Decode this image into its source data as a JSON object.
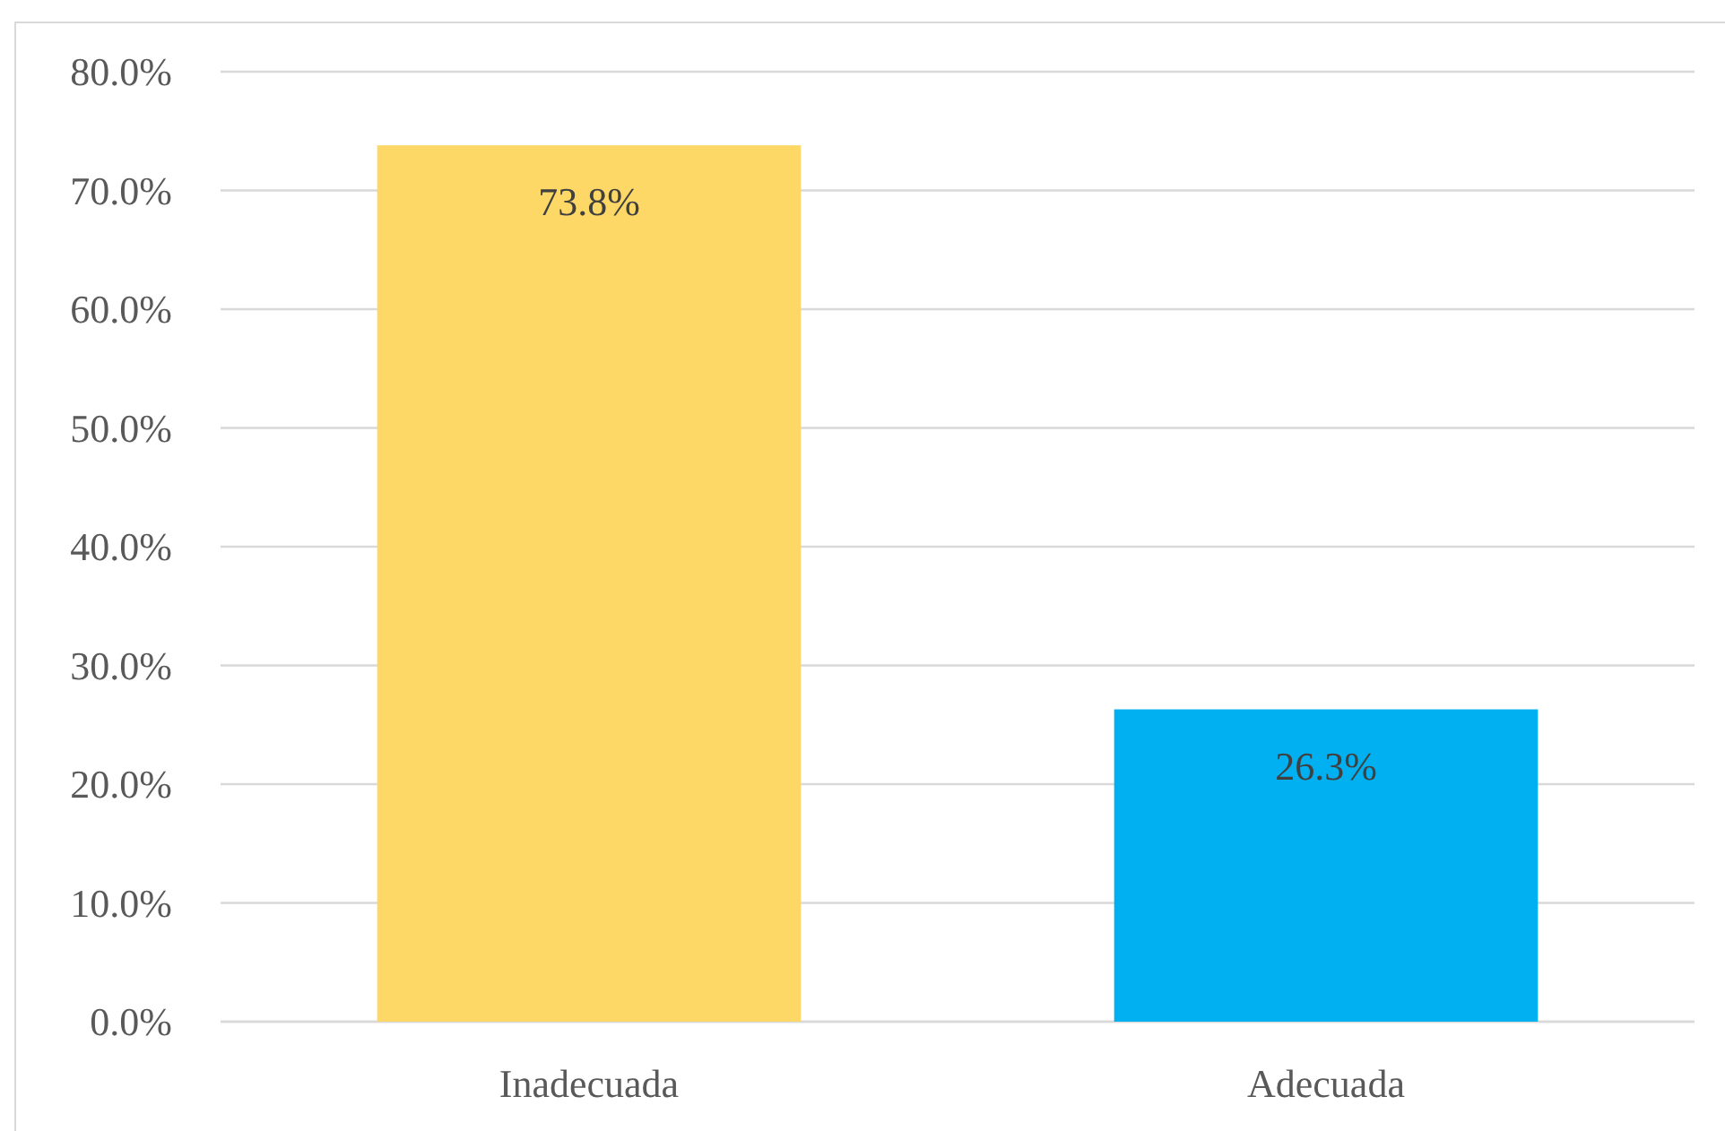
{
  "chart_data": {
    "type": "bar",
    "categories": [
      "Inadecuada",
      "Adecuada"
    ],
    "values": [
      73.8,
      26.3
    ],
    "colors": [
      "#fdd866",
      "#00b0f0"
    ],
    "value_labels": [
      "73.8%",
      "26.3%"
    ],
    "ylim": [
      0,
      80
    ],
    "yticks": [
      {
        "value": 0,
        "label": "0.0%"
      },
      {
        "value": 10,
        "label": "10.0%"
      },
      {
        "value": 20,
        "label": "20.0%"
      },
      {
        "value": 30,
        "label": "30.0%"
      },
      {
        "value": 40,
        "label": "40.0%"
      },
      {
        "value": 50,
        "label": "50.0%"
      },
      {
        "value": 60,
        "label": "60.0%"
      },
      {
        "value": 70,
        "label": "70.0%"
      },
      {
        "value": 80,
        "label": "80.0%"
      }
    ],
    "grid": "y"
  }
}
